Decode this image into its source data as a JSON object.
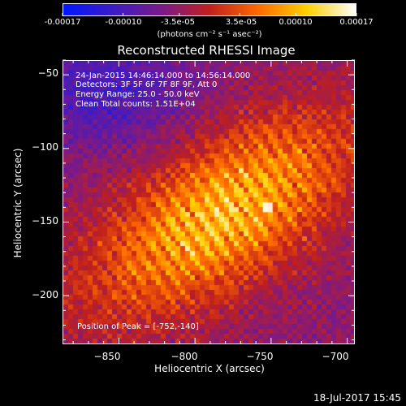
{
  "colorbar": {
    "tick_labels": [
      "-0.00017",
      "-0.00010",
      "-3.5e-05",
      "3.5e-05",
      "0.00010",
      "0.00017"
    ],
    "tick_values": [
      -0.00017,
      -0.0001,
      -3.5e-05,
      3.5e-05,
      0.0001,
      0.00017
    ],
    "unit_label": "(photons cm⁻² s⁻¹ asec⁻²)",
    "range": [
      -0.00017,
      0.00017
    ],
    "colormap": [
      "#0018ff",
      "#3a1cc8",
      "#7a1a8a",
      "#c0201e",
      "#ff6a00",
      "#ffd000",
      "#ffffff"
    ]
  },
  "chart_data": {
    "type": "heatmap",
    "title": "Reconstructed RHESSI Image",
    "xlabel": "Heliocentric X (arcsec)",
    "ylabel": "Heliocentric Y (arcsec)",
    "x_ticks": [
      -850,
      -800,
      -750,
      -700
    ],
    "y_ticks": [
      -50,
      -100,
      -150,
      -200
    ],
    "xlim": [
      -887,
      -695
    ],
    "ylim": [
      -233,
      -40
    ],
    "peak": [
      -752,
      -140
    ],
    "value_range": [
      -0.00017,
      0.00017
    ],
    "annotations": [
      "24-Jan-2015 14:46:14.000 to 14:56:14.000",
      "Detectors: 3F 5F 6F 7F 8F 9F, Att 0",
      "Energy Range: 25.0 - 50.0 keV",
      "Clean     Total counts: 1.51E+04"
    ],
    "peak_label": "Position of Peak = [-752,-140]"
  },
  "timestamp": "18-Jul-2017 15:45"
}
